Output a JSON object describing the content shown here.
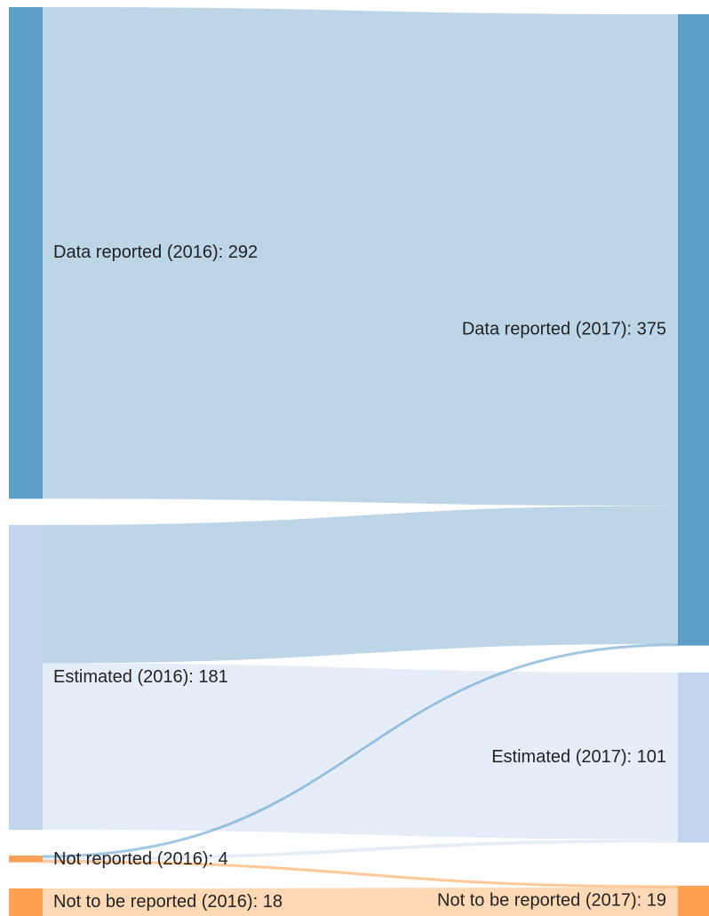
{
  "chart_data": {
    "type": "sankey",
    "nodes": [
      {
        "label": "Data reported (2016): 292",
        "value": 292,
        "color": "#5f9ec9"
      },
      {
        "label": "Estimated (2016): 181",
        "value": 181,
        "color": "#c2d5ee"
      },
      {
        "label": "Not reported (2016): 4",
        "value": 4,
        "color": "#f7a155"
      },
      {
        "label": "Not to be reported (2016): 18",
        "value": 18,
        "color": "#ffa14e"
      },
      {
        "label": "Data reported (2017): 375",
        "value": 375,
        "color": "#5f9ec9"
      },
      {
        "label": "Estimated (2017): 101",
        "value": 101,
        "color": "#c2d5ee"
      },
      {
        "label": "Not to be reported (2017): 19",
        "value": 19,
        "color": "#ffa14e"
      }
    ],
    "links": [
      {
        "source": 0,
        "target": 4,
        "value": 292
      },
      {
        "source": 1,
        "target": 4,
        "value": 82
      },
      {
        "source": 1,
        "target": 5,
        "value": 99
      },
      {
        "source": 2,
        "target": 4,
        "value": 1
      },
      {
        "source": 2,
        "target": 5,
        "value": 2
      },
      {
        "source": 2,
        "target": 6,
        "value": 1
      },
      {
        "source": 3,
        "target": 6,
        "value": 18
      }
    ]
  }
}
